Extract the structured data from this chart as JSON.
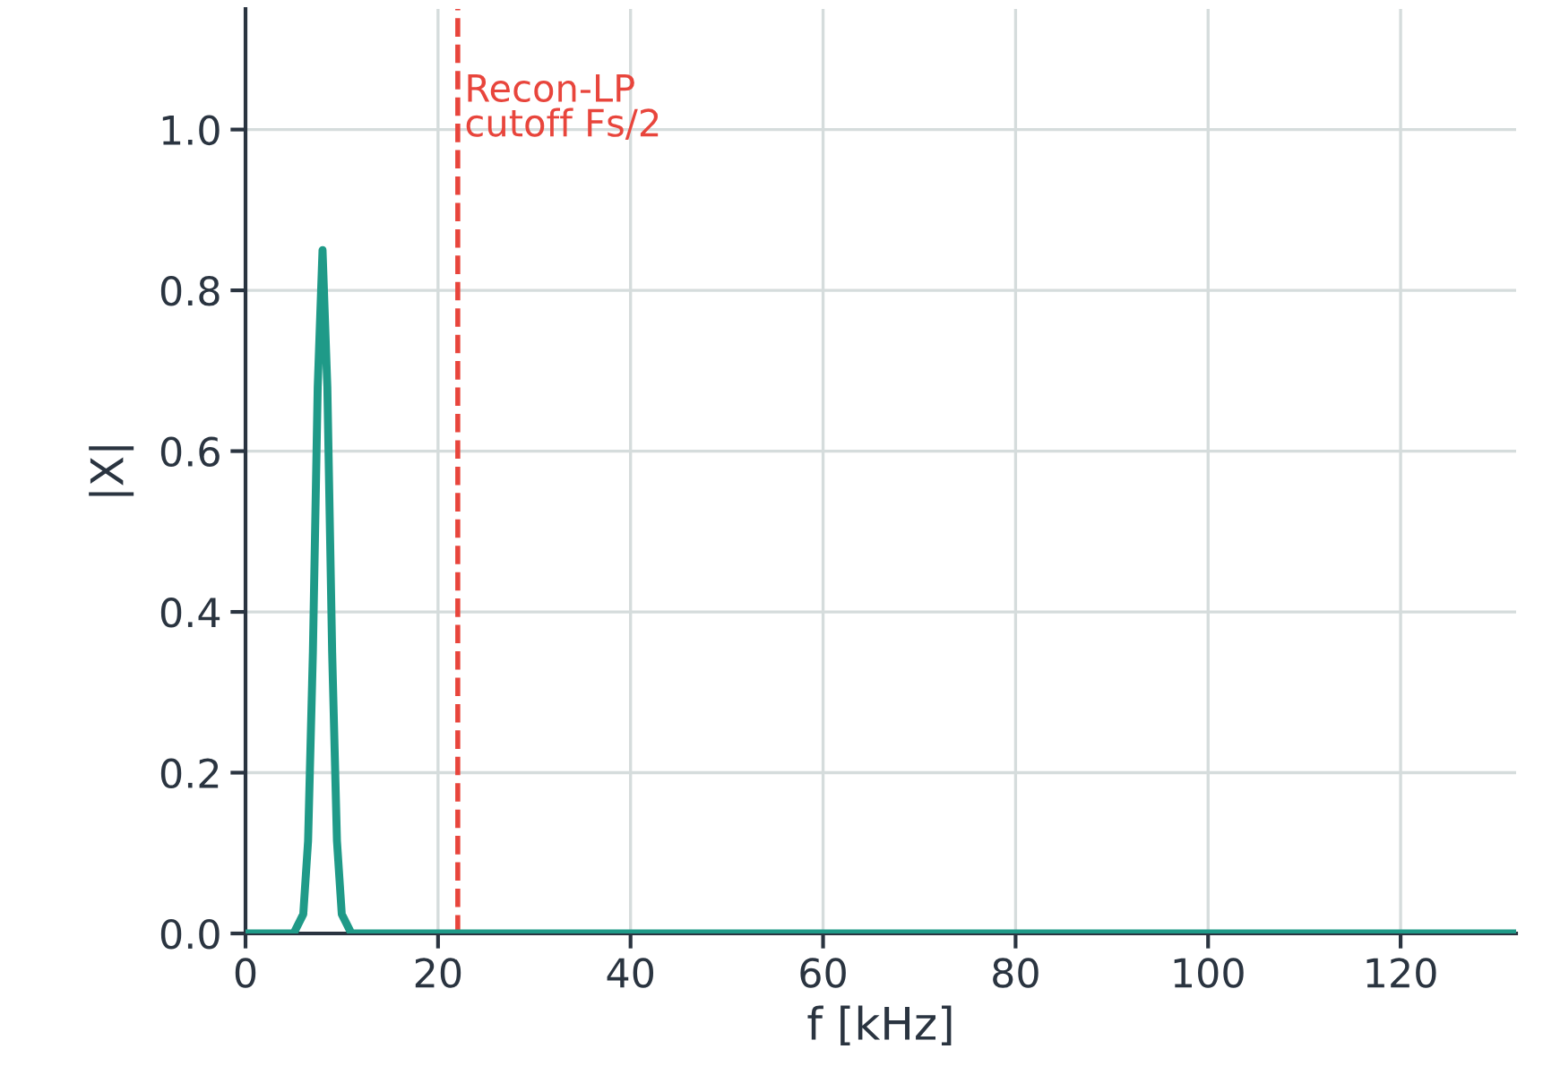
{
  "chart_data": {
    "type": "line",
    "xlabel": "f [kHz]",
    "ylabel": "|X|",
    "x": [
      0,
      5,
      6,
      6.5,
      7,
      7.5,
      8,
      8.5,
      9,
      9.5,
      10,
      11,
      132
    ],
    "series": [
      {
        "color": "#1f9a88",
        "values": [
          0,
          0,
          0.024,
          0.115,
          0.35,
          0.68,
          0.85,
          0.68,
          0.35,
          0.115,
          0.024,
          0,
          0
        ]
      }
    ],
    "xlim": [
      0,
      132
    ],
    "ylim": [
      0,
      1.15
    ],
    "xticks": [
      0,
      20,
      40,
      60,
      80,
      100,
      120
    ],
    "yticks": [
      {
        "value": 0,
        "label": "0.0"
      },
      {
        "value": 0.2,
        "label": "0.2"
      },
      {
        "value": 0.4,
        "label": "0.4"
      },
      {
        "value": 0.6,
        "label": "0.6"
      },
      {
        "value": 0.8,
        "label": "0.8"
      },
      {
        "value": 1.0,
        "label": "1.0"
      }
    ],
    "ref_lines": [
      {
        "axis": "x",
        "value": 22.05,
        "label": "Recon-LP\ncutoff Fs/2",
        "color": "#e8453c",
        "line_style": "dashed"
      }
    ],
    "grid": true,
    "line_style": "solid",
    "marker": "none"
  }
}
